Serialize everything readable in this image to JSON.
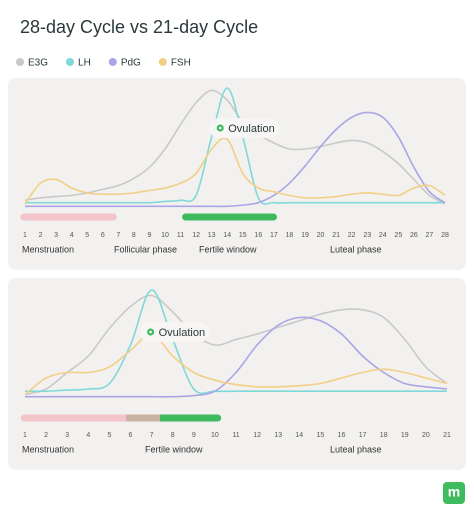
{
  "title": "28-day Cycle vs 21-day Cycle",
  "logo": "m",
  "chart_data": [
    {
      "type": "line",
      "x": [
        1,
        2,
        3,
        4,
        5,
        6,
        7,
        8,
        9,
        10,
        11,
        12,
        13,
        14,
        15,
        16,
        17,
        18,
        19,
        20,
        21,
        22,
        23,
        24,
        25,
        26,
        27,
        28
      ],
      "xlim": [
        1,
        28
      ],
      "ylim": [
        0,
        100
      ],
      "series": [
        {
          "name": "E3G",
          "color": "#c9c9c9",
          "values": [
            8,
            10,
            11,
            12,
            14,
            17,
            20,
            26,
            35,
            50,
            70,
            88,
            98,
            90,
            72,
            62,
            55,
            50,
            50,
            52,
            55,
            57,
            55,
            48,
            38,
            25,
            12,
            5
          ]
        },
        {
          "name": "LH",
          "color": "#7fd9d9",
          "values": [
            6,
            6,
            6,
            6,
            6,
            6,
            6,
            6,
            6,
            7,
            8,
            12,
            60,
            100,
            60,
            10,
            6,
            6,
            6,
            6,
            6,
            6,
            6,
            6,
            6,
            6,
            6,
            6
          ]
        },
        {
          "name": "PdG",
          "color": "#aaa6e6",
          "values": [
            3,
            3,
            3,
            3,
            3,
            3,
            3,
            3,
            3,
            3,
            3,
            3,
            3,
            3,
            4,
            6,
            12,
            22,
            36,
            52,
            66,
            76,
            80,
            76,
            60,
            35,
            15,
            6
          ]
        },
        {
          "name": "FSH",
          "color": "#f3cf85",
          "values": [
            5,
            22,
            25,
            18,
            14,
            13,
            13,
            14,
            16,
            18,
            22,
            30,
            50,
            58,
            30,
            18,
            15,
            12,
            10,
            10,
            11,
            13,
            14,
            13,
            12,
            18,
            20,
            12
          ]
        }
      ],
      "bands": [
        {
          "start": 0.7,
          "end": 6.9,
          "color": "#f3c4c9"
        },
        {
          "start": 11.1,
          "end": 17.2,
          "color": "#3dbb5e"
        }
      ],
      "phases": [
        "Menstruation",
        "Follicular phase",
        "Fertile window",
        "Luteal phase"
      ],
      "ovulation": {
        "label": "Ovulation",
        "day": 14
      }
    },
    {
      "type": "line",
      "x": [
        1,
        2,
        3,
        4,
        5,
        6,
        7,
        8,
        9,
        10,
        11,
        12,
        13,
        14,
        15,
        16,
        17,
        18,
        19,
        20,
        21
      ],
      "xlim": [
        1,
        21
      ],
      "ylim": [
        0,
        100
      ],
      "series": [
        {
          "name": "E3G",
          "color": "#c9c9c9",
          "values": [
            5,
            10,
            25,
            40,
            65,
            85,
            95,
            80,
            60,
            50,
            55,
            60,
            66,
            72,
            78,
            82,
            82,
            75,
            55,
            30,
            15
          ]
        },
        {
          "name": "LH",
          "color": "#7fd9d9",
          "values": [
            8,
            8,
            9,
            10,
            15,
            50,
            100,
            55,
            10,
            8,
            8,
            8,
            8,
            8,
            8,
            8,
            8,
            8,
            8,
            8,
            8
          ]
        },
        {
          "name": "PdG",
          "color": "#aaa6e6",
          "values": [
            3,
            3,
            3,
            3,
            3,
            3,
            3,
            3,
            4,
            8,
            25,
            50,
            68,
            75,
            72,
            60,
            40,
            25,
            15,
            12,
            10
          ]
        },
        {
          "name": "FSH",
          "color": "#f3cf85",
          "values": [
            5,
            20,
            25,
            25,
            30,
            45,
            60,
            40,
            25,
            18,
            14,
            12,
            12,
            13,
            15,
            20,
            25,
            28,
            25,
            20,
            15
          ]
        }
      ],
      "bands": [
        {
          "start": 0.8,
          "end": 7.4,
          "color": "#f3c4c9"
        },
        {
          "start": 5.8,
          "end": 10.3,
          "color": "#3dbb5e"
        }
      ],
      "phases": [
        "Menstruation",
        "Fertile window",
        "Luteal phase"
      ],
      "ovulation": {
        "label": "Ovulation",
        "day": 7
      }
    }
  ]
}
